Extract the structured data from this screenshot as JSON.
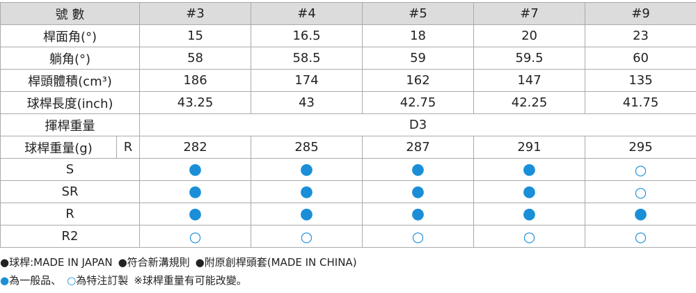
{
  "table": {
    "header": [
      "號 數",
      "#3",
      "#4",
      "#5",
      "#7",
      "#9"
    ],
    "rows": [
      [
        "桿面角(°)",
        "15",
        "16.5",
        "18",
        "20",
        "23"
      ],
      [
        "躺角(°)",
        "58",
        "58.5",
        "59",
        "59.5",
        "60"
      ],
      [
        "桿頭體積(cm³)",
        "186",
        "174",
        "162",
        "147",
        "135"
      ],
      [
        "球桿長度(inch)",
        "43.25",
        "43",
        "42.75",
        "42.25",
        "41.75"
      ]
    ],
    "swing_weight": [
      "揮桿重量",
      "D3"
    ],
    "club_weight": {
      "label": "球桿重量(g)",
      "flex": "R",
      "values": [
        "282",
        "285",
        "287",
        "291",
        "295"
      ]
    },
    "flex_rows": [
      [
        "S",
        "●",
        "●",
        "●",
        "●",
        "○"
      ],
      [
        "SR",
        "●",
        "●",
        "●",
        "●",
        "○"
      ],
      [
        "R",
        "●",
        "●",
        "●",
        "●",
        "●"
      ],
      [
        "R2",
        "○",
        "○",
        "○",
        "○",
        "○"
      ]
    ]
  },
  "notes": [
    [
      "●",
      "球桿:MADE IN JAPAN",
      "●",
      "符合新溝規則",
      "●",
      "附原創桿頭套(MADE IN CHINA)"
    ],
    [
      "●",
      "為一般品、",
      "○",
      "為特注訂製",
      "※球桿重量有可能改變。"
    ]
  ]
}
